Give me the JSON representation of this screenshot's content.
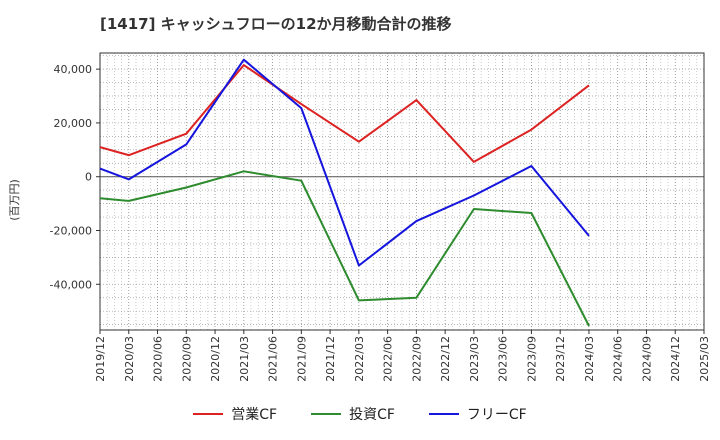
{
  "chart_data": {
    "type": "line",
    "title": "[1417]  キャッシュフローの12か月移動合計の推移",
    "ylabel": "(百万円)",
    "xlabel": "",
    "ylim": [
      -57000,
      46000
    ],
    "yticks": [
      40000,
      20000,
      0,
      -20000,
      -40000
    ],
    "ytick_labels": [
      "40,000",
      "20,000",
      "0",
      "-20,000",
      "-40,000"
    ],
    "categories": [
      "2019/12",
      "2020/03",
      "2020/06",
      "2020/09",
      "2020/12",
      "2021/03",
      "2021/06",
      "2021/09",
      "2021/12",
      "2022/03",
      "2022/06",
      "2022/09",
      "2022/12",
      "2023/03",
      "2023/06",
      "2023/09",
      "2023/12",
      "2024/03",
      "2024/06",
      "2024/09",
      "2024/12",
      "2025/03"
    ],
    "grid": true,
    "series": [
      {
        "name": "営業CF",
        "color": "#dd2222",
        "values": [
          11000,
          8000,
          null,
          16000,
          null,
          41500,
          null,
          27000,
          null,
          13000,
          null,
          28500,
          null,
          5500,
          null,
          17500,
          null,
          34000,
          null,
          null,
          null,
          null
        ]
      },
      {
        "name": "投資CF",
        "color": "#2e8b2e",
        "values": [
          -8000,
          -9000,
          null,
          -4000,
          null,
          2000,
          null,
          -1500,
          null,
          -46000,
          null,
          -45000,
          null,
          -12000,
          null,
          -13500,
          null,
          -55500,
          null,
          null,
          null,
          null
        ]
      },
      {
        "name": "フリーCF",
        "color": "#1515dd",
        "values": [
          3000,
          -1000,
          null,
          12000,
          null,
          43500,
          null,
          25500,
          null,
          -33000,
          null,
          -16500,
          null,
          -7000,
          null,
          4000,
          null,
          -22000,
          null,
          null,
          null,
          null
        ]
      }
    ]
  }
}
